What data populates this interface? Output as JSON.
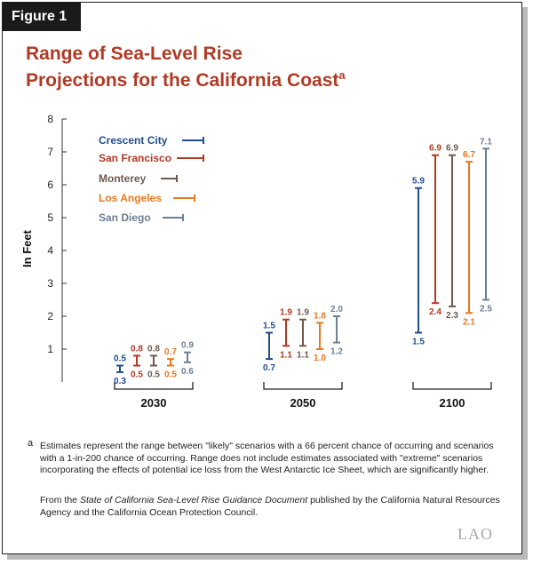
{
  "figure_label": "Figure 1",
  "title_line1": "Range of Sea-Level Rise",
  "title_line2": "Projections for the California Coast",
  "title_footnote_mark": "a",
  "chart_data": {
    "type": "range-bar",
    "ylabel": "In Feet",
    "ylim": [
      0,
      8
    ],
    "yticks": [
      1,
      2,
      3,
      4,
      5,
      6,
      7,
      8
    ],
    "categories": [
      "2030",
      "2050",
      "2100"
    ],
    "series": [
      {
        "name": "Crescent City",
        "color": "#1f4e8c",
        "low": [
          0.3,
          0.7,
          1.5
        ],
        "high": [
          0.5,
          1.5,
          5.9
        ]
      },
      {
        "name": "San Francisco",
        "color": "#b03a24",
        "low": [
          0.5,
          1.1,
          2.4
        ],
        "high": [
          0.8,
          1.9,
          6.9
        ]
      },
      {
        "name": "Monterey",
        "color": "#6e5a50",
        "low": [
          0.5,
          1.1,
          2.3
        ],
        "high": [
          0.8,
          1.9,
          6.9
        ]
      },
      {
        "name": "Los Angeles",
        "color": "#e8781e",
        "low": [
          0.5,
          1.0,
          2.1
        ],
        "high": [
          0.7,
          1.8,
          6.7
        ]
      },
      {
        "name": "San Diego",
        "color": "#6d7f93",
        "low": [
          0.6,
          1.2,
          2.5
        ],
        "high": [
          0.9,
          2.0,
          7.1
        ]
      }
    ],
    "legend_placement": "top-left"
  },
  "footnote_mark": "a",
  "footnote": "Estimates represent the range between \"likely\" scenarios with a 66 percent chance of occurring and scenarios with a 1-in-200 chance of occurring. Range does not include estimates associated with \"extreme\" scenarios incorporating the effects of potential ice loss from the West Antarctic Ice Sheet, which are significantly higher.",
  "source_prefix": "From the ",
  "source_italic": "State of California Sea-Level Rise Guidance Document",
  "source_suffix": " published by the California Natural Resources Agency and the California Ocean Protection Council.",
  "logo_text": "LAO"
}
